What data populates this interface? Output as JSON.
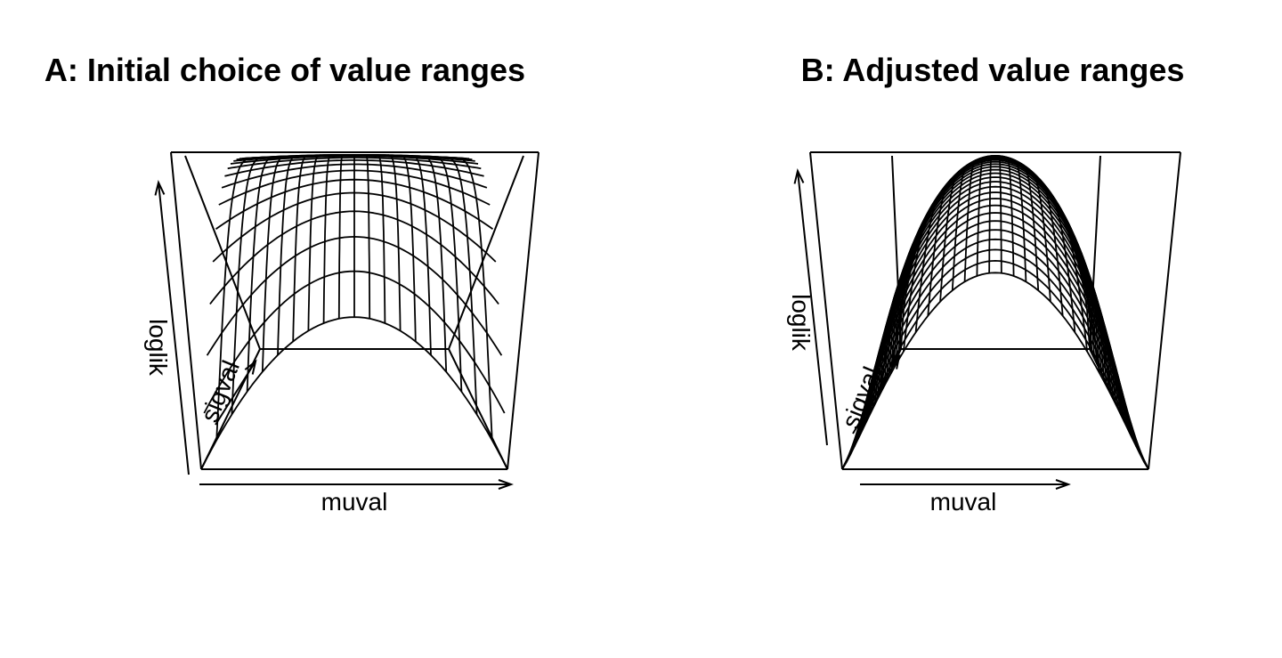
{
  "chart_data": [
    {
      "type": "surface",
      "title": "A: Initial choice of value ranges",
      "xlabel": "muval",
      "ylabel": "sigval",
      "zlabel": "loglik",
      "grid_lines": {
        "mu": 20,
        "sigma": 20
      },
      "line_color": "#000000"
    },
    {
      "type": "surface",
      "title": "B: Adjusted value ranges",
      "xlabel": "muval",
      "ylabel": "sigval",
      "zlabel": "loglik",
      "grid_lines": {
        "mu": 25,
        "sigma": 25
      },
      "line_color": "#000000"
    }
  ]
}
